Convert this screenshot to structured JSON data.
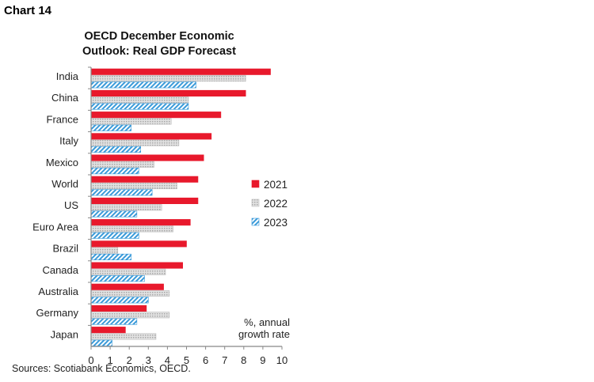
{
  "figure_label": "Chart 14",
  "chart_data": {
    "type": "bar",
    "orientation": "horizontal",
    "title": "OECD December Economic Outlook: Real GDP Forecast",
    "title_lines": [
      "OECD December Economic",
      "Outlook: Real GDP Forecast"
    ],
    "categories": [
      "India",
      "China",
      "France",
      "Italy",
      "Mexico",
      "World",
      "US",
      "Euro Area",
      "Brazil",
      "Canada",
      "Australia",
      "Germany",
      "Japan"
    ],
    "series": [
      {
        "name": "2021",
        "color": "#e8192c",
        "pattern": "solid",
        "values": [
          9.4,
          8.1,
          6.8,
          6.3,
          5.9,
          5.6,
          5.6,
          5.2,
          5.0,
          4.8,
          3.8,
          2.9,
          1.8
        ]
      },
      {
        "name": "2022",
        "color": "#c8c8c8",
        "pattern": "dotted",
        "values": [
          8.1,
          5.1,
          4.2,
          4.6,
          3.3,
          4.5,
          3.7,
          4.3,
          1.4,
          3.9,
          4.1,
          4.1,
          3.4
        ]
      },
      {
        "name": "2023",
        "color": "#3a9ad9",
        "pattern": "hatched",
        "values": [
          5.5,
          5.1,
          2.1,
          2.6,
          2.5,
          3.2,
          2.4,
          2.5,
          2.1,
          2.8,
          3.0,
          2.4,
          1.1
        ]
      }
    ],
    "xlim": [
      0,
      10
    ],
    "xticks": [
      "0",
      "1",
      "2",
      "3",
      "4",
      "5",
      "6",
      "7",
      "8",
      "9",
      "10"
    ],
    "xlabel": "",
    "annotation_lines": [
      "%, annual",
      "growth rate"
    ],
    "legend_position": "right",
    "grid": false
  },
  "source": "Sources: Scotiabank Economics, OECD."
}
